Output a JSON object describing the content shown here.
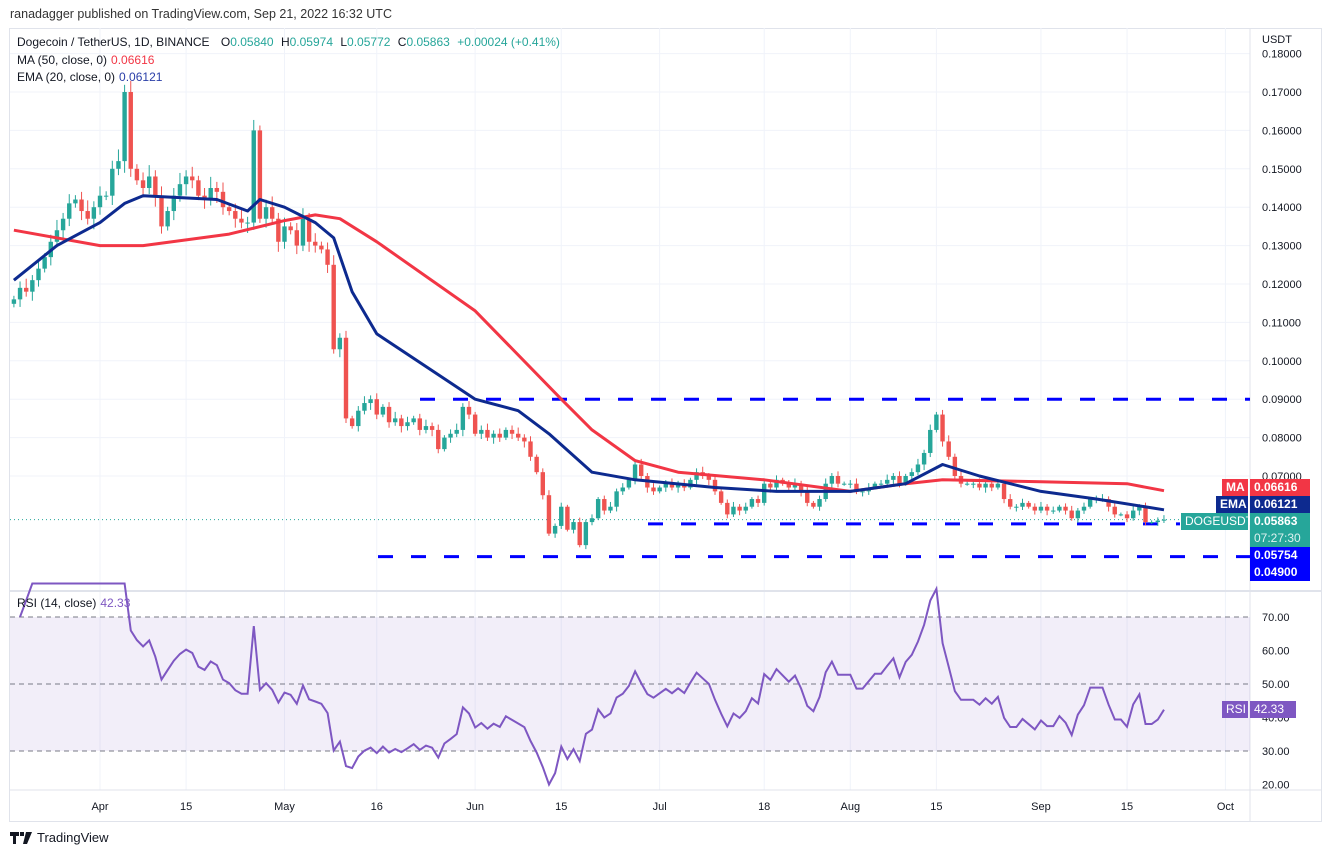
{
  "publisher_line": "ranadagger published on TradingView.com, Sep 21, 2022 16:32 UTC",
  "symbol_title": "Dogecoin / TetherUS, 1D, BINANCE",
  "ohlc_header": {
    "o_label": "O",
    "o": "0.05840",
    "h_label": "H",
    "h": "0.05974",
    "l_label": "L",
    "l": "0.05772",
    "c_label": "C",
    "c": "0.05863",
    "change": "+0.00024 (+0.41%)"
  },
  "indicators": {
    "ma_label": "MA (50, close, 0)",
    "ma_value": "0.06616",
    "ema_label": "EMA (20, close, 0)",
    "ema_value": "0.06121",
    "rsi_label": "RSI (14, close)",
    "rsi_value": "42.33"
  },
  "price_axis": {
    "unit": "USDT",
    "ticks": [
      "0.18000",
      "0.17000",
      "0.16000",
      "0.15000",
      "0.14000",
      "0.13000",
      "0.12000",
      "0.11000",
      "0.10000",
      "0.09000",
      "0.08000",
      "0.07000"
    ]
  },
  "rsi_axis": {
    "ticks": [
      "70.00",
      "60.00",
      "50.00",
      "40.00",
      "30.00",
      "20.00"
    ]
  },
  "time_axis": {
    "ticks": [
      "Apr",
      "15",
      "May",
      "16",
      "Jun",
      "15",
      "Jul",
      "18",
      "Aug",
      "15",
      "Sep",
      "15",
      "Oct"
    ]
  },
  "badges": {
    "ma": {
      "label": "MA",
      "value": "0.06616"
    },
    "ema": {
      "label": "EMA",
      "value": "0.06121"
    },
    "symbol": {
      "label": "DOGEUSDT",
      "value": "0.05863",
      "countdown": "07:27:30"
    },
    "level1": "0.05754",
    "level2": "0.04900",
    "rsi": {
      "label": "RSI",
      "value": "42.33"
    }
  },
  "brand": "TradingView",
  "colors": {
    "up": "#26a69a",
    "down": "#ef5350",
    "ma": "#f23645",
    "ema": "#0d2a8f",
    "levels": "#0000ff",
    "rsi": "#7e57c2"
  },
  "chart_data": {
    "type": "candlestick",
    "y_range": [
      0.045,
      0.185
    ],
    "horizontal_levels": [
      0.09,
      0.05754,
      0.049
    ],
    "candles_by_month": [
      {
        "month": "2022-03",
        "first_day": 18,
        "close": [
          0.116,
          0.119,
          0.118,
          0.121,
          0.124,
          0.127,
          0.131,
          0.134,
          0.137,
          0.141,
          0.142,
          0.139,
          0.137,
          0.14
        ]
      },
      {
        "month": "2022-04",
        "first_day": 1,
        "close": [
          0.143,
          0.143,
          0.15,
          0.152,
          0.17,
          0.15,
          0.147,
          0.145,
          0.148,
          0.143,
          0.135,
          0.139,
          0.143,
          0.146,
          0.148,
          0.147,
          0.143,
          0.142,
          0.145,
          0.144,
          0.14,
          0.139,
          0.137,
          0.136,
          0.136,
          0.16,
          0.137,
          0.14,
          0.137,
          0.131
        ]
      },
      {
        "month": "2022-05",
        "first_day": 1,
        "close": [
          0.135,
          0.134,
          0.13,
          0.137,
          0.131,
          0.13,
          0.129,
          0.125,
          0.103,
          0.106,
          0.085,
          0.083,
          0.087,
          0.089,
          0.09,
          0.086,
          0.088,
          0.084,
          0.085,
          0.083,
          0.084,
          0.085,
          0.082,
          0.083,
          0.082,
          0.077,
          0.08,
          0.081,
          0.082,
          0.088,
          0.086
        ]
      },
      {
        "month": "2022-06",
        "first_day": 1,
        "close": [
          0.081,
          0.082,
          0.08,
          0.081,
          0.08,
          0.082,
          0.081,
          0.08,
          0.079,
          0.075,
          0.071,
          0.065,
          0.055,
          0.057,
          0.062,
          0.056,
          0.058,
          0.052,
          0.058,
          0.059,
          0.064,
          0.061,
          0.062,
          0.066,
          0.067,
          0.069,
          0.073,
          0.07,
          0.067,
          0.066
        ]
      },
      {
        "month": "2022-07",
        "first_day": 1,
        "close": [
          0.067,
          0.068,
          0.067,
          0.068,
          0.067,
          0.069,
          0.071,
          0.07,
          0.069,
          0.066,
          0.063,
          0.06,
          0.062,
          0.061,
          0.062,
          0.064,
          0.063,
          0.068,
          0.067,
          0.069,
          0.068,
          0.067,
          0.068,
          0.066,
          0.063,
          0.062,
          0.064,
          0.068,
          0.07,
          0.068,
          0.068
        ]
      },
      {
        "month": "2022-08",
        "first_day": 1,
        "close": [
          0.068,
          0.066,
          0.066,
          0.067,
          0.068,
          0.068,
          0.069,
          0.07,
          0.068,
          0.07,
          0.071,
          0.073,
          0.076,
          0.082,
          0.086,
          0.079,
          0.075,
          0.07,
          0.068,
          0.068,
          0.068,
          0.067,
          0.068,
          0.067,
          0.068,
          0.064,
          0.062,
          0.062,
          0.063,
          0.062,
          0.061
        ]
      },
      {
        "month": "2022-09",
        "first_day": 1,
        "close": [
          0.062,
          0.061,
          0.061,
          0.062,
          0.061,
          0.059,
          0.061,
          0.062,
          0.064,
          0.064,
          0.064,
          0.062,
          0.06,
          0.06,
          0.059,
          0.061,
          0.062,
          0.058,
          0.058,
          0.0584,
          0.05863
        ]
      }
    ],
    "ma50": [
      [
        "2022-03-18",
        0.134
      ],
      [
        "2022-04-01",
        0.13
      ],
      [
        "2022-04-08",
        0.13
      ],
      [
        "2022-04-22",
        0.133
      ],
      [
        "2022-05-01",
        0.1365
      ],
      [
        "2022-05-06",
        0.138
      ],
      [
        "2022-05-10",
        0.137
      ],
      [
        "2022-05-16",
        0.131
      ],
      [
        "2022-06-01",
        0.113
      ],
      [
        "2022-06-15",
        0.09
      ],
      [
        "2022-06-20",
        0.082
      ],
      [
        "2022-06-27",
        0.074
      ],
      [
        "2022-07-04",
        0.071
      ],
      [
        "2022-07-18",
        0.069
      ],
      [
        "2022-08-01",
        0.066
      ],
      [
        "2022-08-10",
        0.068
      ],
      [
        "2022-08-16",
        0.069
      ],
      [
        "2022-09-01",
        0.0685
      ],
      [
        "2022-09-15",
        0.068
      ],
      [
        "2022-09-21",
        0.06616
      ]
    ],
    "ema20": [
      [
        "2022-03-18",
        0.121
      ],
      [
        "2022-03-25",
        0.13
      ],
      [
        "2022-04-01",
        0.136
      ],
      [
        "2022-04-05",
        0.141
      ],
      [
        "2022-04-08",
        0.143
      ],
      [
        "2022-04-20",
        0.142
      ],
      [
        "2022-04-25",
        0.139
      ],
      [
        "2022-04-27",
        0.142
      ],
      [
        "2022-05-01",
        0.14
      ],
      [
        "2022-05-06",
        0.136
      ],
      [
        "2022-05-09",
        0.132
      ],
      [
        "2022-05-12",
        0.118
      ],
      [
        "2022-05-16",
        0.107
      ],
      [
        "2022-06-01",
        0.09
      ],
      [
        "2022-06-08",
        0.087
      ],
      [
        "2022-06-13",
        0.081
      ],
      [
        "2022-06-20",
        0.071
      ],
      [
        "2022-06-27",
        0.069
      ],
      [
        "2022-07-10",
        0.067
      ],
      [
        "2022-07-20",
        0.066
      ],
      [
        "2022-08-01",
        0.066
      ],
      [
        "2022-08-10",
        0.068
      ],
      [
        "2022-08-16",
        0.073
      ],
      [
        "2022-08-22",
        0.07
      ],
      [
        "2022-09-01",
        0.066
      ],
      [
        "2022-09-10",
        0.064
      ],
      [
        "2022-09-21",
        0.06121
      ]
    ],
    "rsi": {
      "period": 14,
      "overbought": 70,
      "middle": 50,
      "oversold": 30,
      "y_range": [
        20,
        80
      ],
      "last": 42.33
    }
  }
}
